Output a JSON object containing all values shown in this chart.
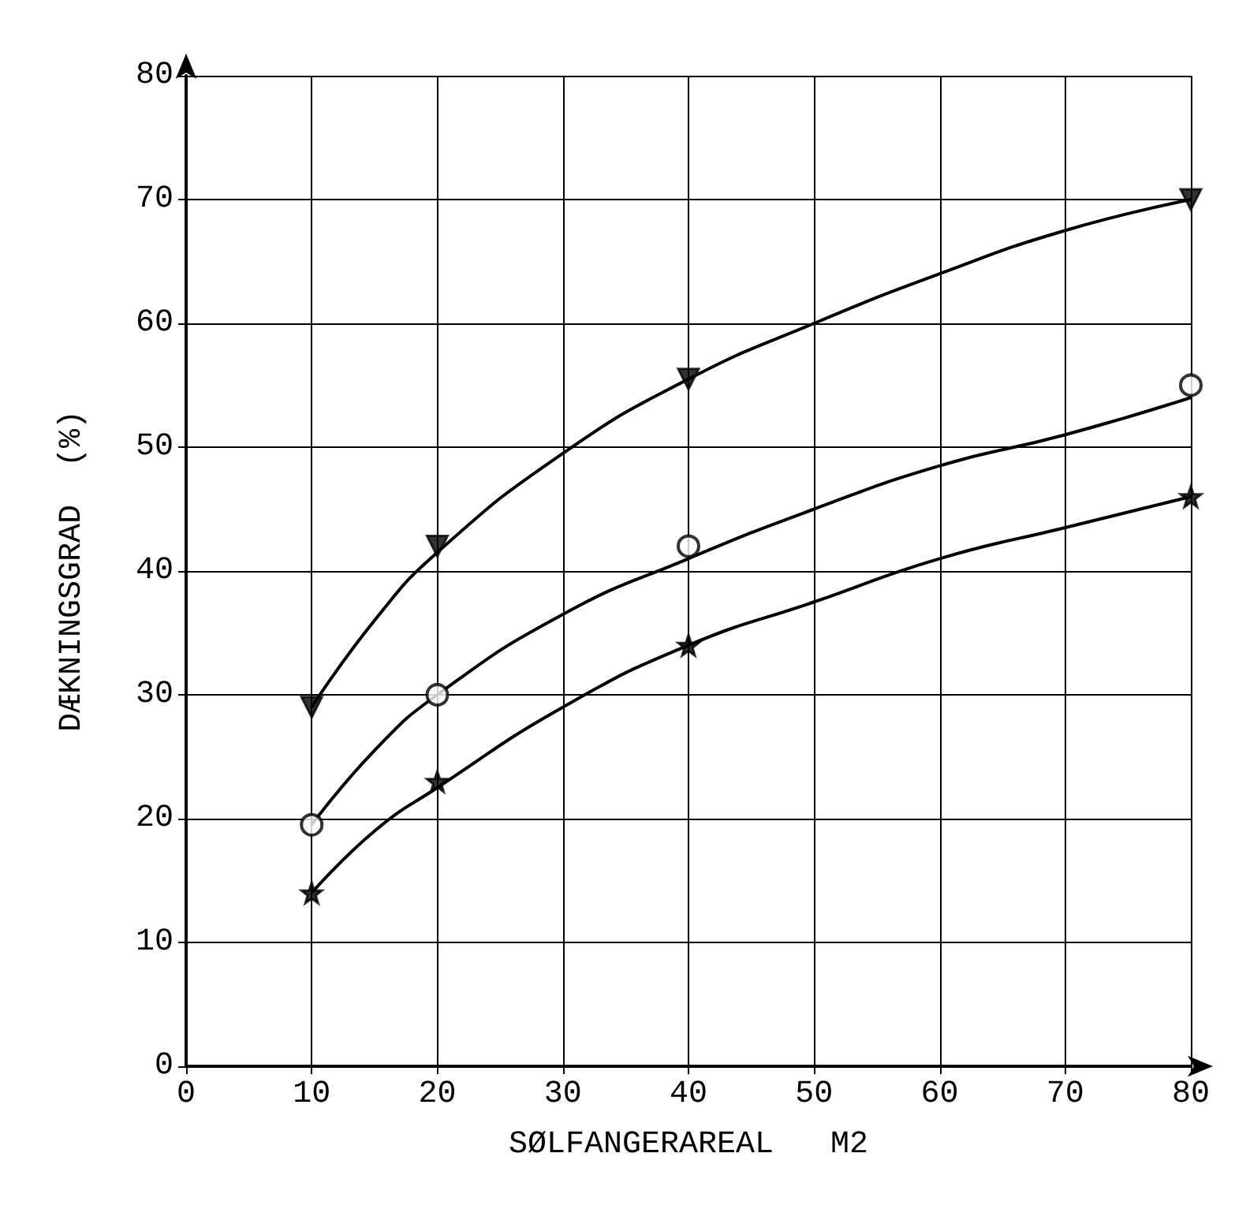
{
  "chart_data": {
    "type": "scatter",
    "xlabel": "SØLFANGERAREAL   M2",
    "ylabel": "DÆKNINGSGRAD  (%)",
    "xlim": [
      0,
      80
    ],
    "xticks": [
      0,
      10,
      20,
      30,
      40,
      50,
      60,
      70,
      80
    ],
    "ylim": [
      0,
      80
    ],
    "yticks": [
      0,
      10,
      20,
      30,
      40,
      50,
      60,
      70,
      80
    ],
    "grid": true,
    "series": [
      {
        "marker": "triangle",
        "color": "#000000",
        "x": [
          10,
          20,
          40,
          80
        ],
        "values": [
          29,
          42,
          55.5,
          70
        ]
      },
      {
        "marker": "circle",
        "color": "#000000",
        "x": [
          10,
          20,
          40,
          80
        ],
        "values": [
          19.5,
          30,
          42,
          55
        ]
      },
      {
        "marker": "star",
        "color": "#000000",
        "x": [
          10,
          20,
          40,
          80
        ],
        "values": [
          14,
          23,
          34,
          46
        ]
      },
      {
        "type": "line",
        "marker": "none",
        "line_style": "solid",
        "color": "#000000",
        "x": [
          10,
          15,
          20,
          30,
          40,
          50,
          60,
          70,
          80
        ],
        "values": [
          29,
          36,
          41.5,
          49.5,
          55.5,
          60,
          64,
          67.5,
          70
        ]
      },
      {
        "type": "line",
        "marker": "none",
        "line_style": "solid",
        "color": "#000000",
        "x": [
          10,
          15,
          20,
          30,
          40,
          50,
          60,
          70,
          80
        ],
        "values": [
          19.5,
          25.5,
          30,
          36.5,
          41,
          45,
          48.5,
          51,
          54
        ]
      },
      {
        "type": "line",
        "marker": "none",
        "line_style": "solid",
        "color": "#000000",
        "x": [
          10,
          15,
          20,
          30,
          40,
          50,
          60,
          70,
          80
        ],
        "values": [
          14,
          19,
          22.5,
          29,
          34,
          37.5,
          41,
          43.5,
          46
        ]
      }
    ]
  }
}
